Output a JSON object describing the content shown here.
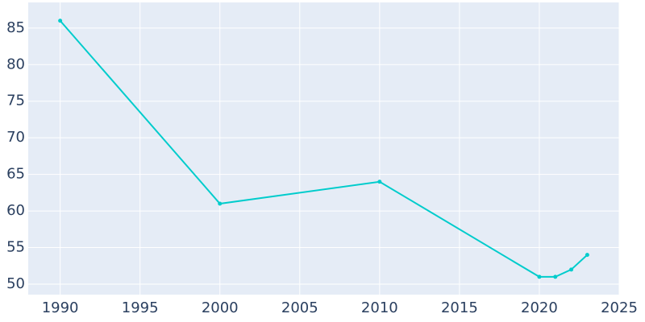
{
  "chart_data": {
    "type": "line",
    "x": [
      1990,
      2000,
      2010,
      2020,
      2021,
      2022,
      2023
    ],
    "series": [
      {
        "color": "#00cccc",
        "values": [
          86,
          61,
          64,
          51,
          51,
          52,
          54
        ]
      }
    ],
    "xlim": [
      1988,
      2025
    ],
    "ylim": [
      48.57,
      88.5
    ],
    "xticks": [
      1990,
      1995,
      2000,
      2005,
      2010,
      2015,
      2020,
      2025
    ],
    "yticks": [
      50,
      55,
      60,
      65,
      70,
      75,
      80,
      85
    ],
    "grid": true
  }
}
